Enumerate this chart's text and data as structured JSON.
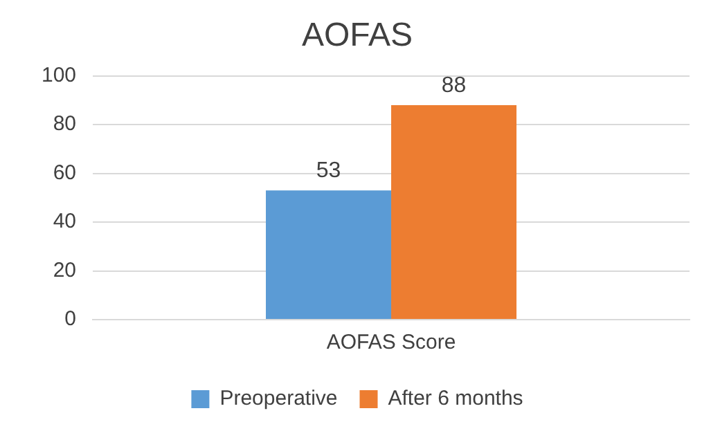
{
  "chart_data": {
    "type": "bar",
    "title": "AOFAS",
    "categories": [
      "AOFAS Score"
    ],
    "series": [
      {
        "name": "Preoperative",
        "color": "#5b9bd5",
        "values": [
          53
        ]
      },
      {
        "name": "After 6 months",
        "color": "#ed7d31",
        "values": [
          88
        ]
      }
    ],
    "ylim": [
      0,
      100
    ],
    "yticks": [
      0,
      20,
      40,
      60,
      80,
      100
    ],
    "grid": "y",
    "legend": "bottom",
    "data_labels": true
  }
}
